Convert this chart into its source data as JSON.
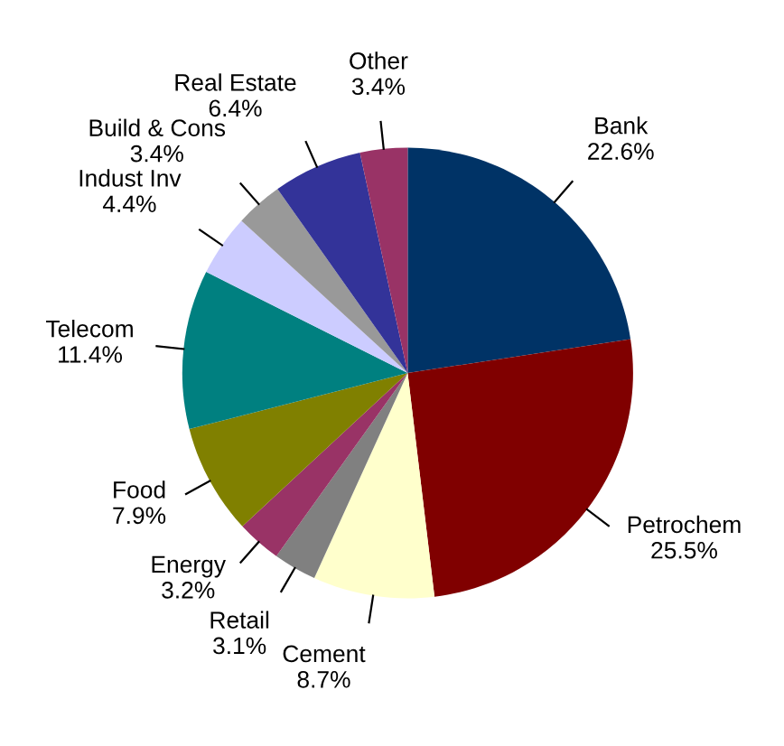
{
  "chart_data": {
    "type": "pie",
    "categories": [
      "Bank",
      "Petrochem",
      "Cement",
      "Retail",
      "Energy",
      "Food",
      "Telecom",
      "Indust Inv",
      "Build & Cons",
      "Real Estate",
      "Other"
    ],
    "values": [
      22.6,
      25.5,
      8.7,
      3.1,
      3.2,
      7.9,
      11.4,
      4.4,
      3.4,
      6.4,
      3.4
    ],
    "value_labels": [
      "22.6%",
      "25.5%",
      "8.7%",
      "3.1%",
      "3.2%",
      "7.9%",
      "11.4%",
      "4.4%",
      "3.4%",
      "6.4%",
      "3.4%"
    ],
    "colors": [
      "#003366",
      "#800000",
      "#ffffcc",
      "#808080",
      "#993366",
      "#808000",
      "#008080",
      "#ccccff",
      "#999999",
      "#333399",
      "#993366"
    ],
    "legend": false
  }
}
